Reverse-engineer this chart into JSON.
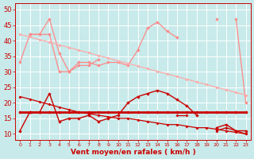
{
  "x": [
    0,
    1,
    2,
    3,
    4,
    5,
    6,
    7,
    8,
    9,
    10,
    11,
    12,
    13,
    14,
    15,
    16,
    17,
    18,
    19,
    20,
    21,
    22,
    23
  ],
  "lines": [
    {
      "y": [
        33,
        42,
        42,
        47,
        36,
        30,
        33,
        33,
        32,
        33,
        33,
        32,
        37,
        44,
        46,
        43,
        41,
        null,
        null,
        null,
        47,
        null,
        47,
        20
      ],
      "color": "#ff8888",
      "lw": 0.9,
      "ms": 2.2
    },
    {
      "y": [
        null,
        42,
        42,
        42,
        30,
        30,
        32,
        32,
        34,
        null,
        null,
        null,
        null,
        null,
        null,
        null,
        null,
        null,
        null,
        null,
        null,
        null,
        null,
        null
      ],
      "color": "#ff8888",
      "lw": 0.9,
      "ms": 2.2
    },
    {
      "y": [
        42,
        41.2,
        40.3,
        39.5,
        38.6,
        37.8,
        36.9,
        36.1,
        35.2,
        34.4,
        33.5,
        32.7,
        31.8,
        31.0,
        30.1,
        29.3,
        28.4,
        27.6,
        26.7,
        25.9,
        25.0,
        24.2,
        23.3,
        22.5
      ],
      "color": "#ffaaaa",
      "lw": 0.9,
      "ms": 2.0
    },
    {
      "y": [
        11,
        17,
        17,
        23,
        14,
        15,
        15,
        16,
        14,
        15,
        16,
        20,
        22,
        23,
        24,
        23,
        21,
        19,
        16,
        null,
        12,
        13,
        11,
        11
      ],
      "color": "#cc0000",
      "lw": 1.0,
      "ms": 2.2
    },
    {
      "y": [
        22,
        21.2,
        20.3,
        19.5,
        18.6,
        17.8,
        17.0,
        16.5,
        16.0,
        15.5,
        15.0,
        15.0,
        14.5,
        14.0,
        13.5,
        13.0,
        13.0,
        12.5,
        12.0,
        12.0,
        11.5,
        11.0,
        10.5,
        10.0
      ],
      "color": "#cc0000",
      "lw": 0.9,
      "ms": 2.0
    },
    {
      "y": [
        17,
        17,
        17,
        17,
        17,
        17,
        17,
        17,
        17,
        17,
        17,
        17,
        17,
        17,
        17,
        17,
        17,
        17,
        17,
        17,
        17,
        17,
        17,
        17
      ],
      "color": "#cc0000",
      "lw": 2.0,
      "ms": 2.2
    },
    {
      "y": [
        null,
        null,
        null,
        null,
        null,
        null,
        null,
        null,
        null,
        null,
        null,
        null,
        null,
        null,
        null,
        null,
        16,
        16,
        null,
        null,
        11,
        12,
        11,
        10
      ],
      "color": "#cc0000",
      "lw": 0.9,
      "ms": 2.0
    }
  ],
  "bg_color": "#c8eaea",
  "grid_color": "#ffffff",
  "xlabel": "Vent moyen/en rafales ( km/h )",
  "ylim": [
    8,
    52
  ],
  "xlim": [
    -0.5,
    23.5
  ],
  "yticks": [
    10,
    15,
    20,
    25,
    30,
    35,
    40,
    45,
    50
  ],
  "xticks": [
    0,
    1,
    2,
    3,
    4,
    5,
    6,
    7,
    8,
    9,
    10,
    11,
    12,
    13,
    14,
    15,
    16,
    17,
    18,
    19,
    20,
    21,
    22,
    23
  ],
  "label_color": "#cc0000"
}
